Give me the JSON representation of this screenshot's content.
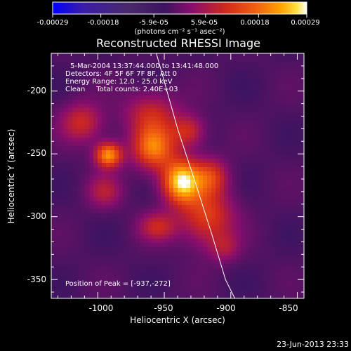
{
  "chart_data": {
    "type": "heatmap",
    "title": "Reconstructed RHESSI Image",
    "xlabel": "Heliocentric X (arcsec)",
    "ylabel": "Heliocentric Y (arcsec)",
    "xlim": [
      -1035,
      -845
    ],
    "ylim": [
      -365,
      -170
    ],
    "x_ticks": [
      -1000,
      -950,
      -900,
      -850
    ],
    "x_tick_labels": [
      "-1000",
      "-950",
      "-900",
      "-850"
    ],
    "y_ticks": [
      -200,
      -250,
      -300,
      -350
    ],
    "y_tick_labels": [
      "-200",
      "-250",
      "-300",
      "-350"
    ],
    "colorbar": {
      "range": [
        -0.00029,
        0.00029
      ],
      "ticks": [
        -0.00029,
        -0.00018,
        -5.9e-05,
        5.9e-05,
        0.00018,
        0.00029
      ],
      "tick_labels": [
        "-0.00029",
        "-0.00018",
        "-5.9e-05",
        "5.9e-05",
        "0.00018",
        "0.00029"
      ],
      "units": "(photons cm⁻² s⁻¹ asec⁻²)"
    },
    "annotations": [
      "5-Mar-2004 13:37:44.000 to 13:41:48.000",
      "Detectors: 4F 5F 6F 7F 8F, Att 0",
      "Energy Range: 12.0 - 25.0 keV",
      "Clean     Total counts: 2.40E+03"
    ],
    "peak_label": "Position of Peak = [-937,-272]",
    "peak": {
      "x": -937,
      "y": -272,
      "value": 0.00029
    },
    "sources": [
      {
        "x": -937,
        "y": -272,
        "sx": 10,
        "sy": 12,
        "value": 0.00029
      },
      {
        "x": -958,
        "y": -245,
        "sx": 11,
        "sy": 12,
        "value": 0.00021
      },
      {
        "x": -992,
        "y": -251,
        "sx": 7,
        "sy": 7,
        "value": 0.00024
      },
      {
        "x": -1012,
        "y": -225,
        "sx": 11,
        "sy": 11,
        "value": 0.00012
      },
      {
        "x": -960,
        "y": -218,
        "sx": 14,
        "sy": 12,
        "value": 0.00011
      },
      {
        "x": -918,
        "y": -300,
        "sx": 14,
        "sy": 16,
        "value": 0.00015
      },
      {
        "x": -955,
        "y": -308,
        "sx": 10,
        "sy": 8,
        "value": 0.00011
      },
      {
        "x": -915,
        "y": -268,
        "sx": 9,
        "sy": 10,
        "value": 0.00013
      },
      {
        "x": -932,
        "y": -232,
        "sx": 9,
        "sy": 9,
        "value": 0.00012
      },
      {
        "x": -995,
        "y": -280,
        "sx": 9,
        "sy": 9,
        "value": 9e-05
      },
      {
        "x": -905,
        "y": -325,
        "sx": 8,
        "sy": 8,
        "value": 7e-05
      }
    ],
    "limb_curve": {
      "x": [
        -956,
        -940,
        -926,
        -914,
        -904,
        -897
      ],
      "y": [
        -170,
        -230,
        -275,
        -315,
        -350,
        -365
      ]
    },
    "footer": "23-Jun-2013 23:33",
    "colors": {
      "background": "#000000",
      "text": "#ffffff",
      "limb": "#ffffff",
      "colormap_stops": [
        "#0000ff",
        "#3a1da8",
        "#4a2a6a",
        "#3c1460",
        "#8a0e6c",
        "#d0281c",
        "#f26010",
        "#ffa400",
        "#ffe040",
        "#ffffff"
      ]
    }
  }
}
